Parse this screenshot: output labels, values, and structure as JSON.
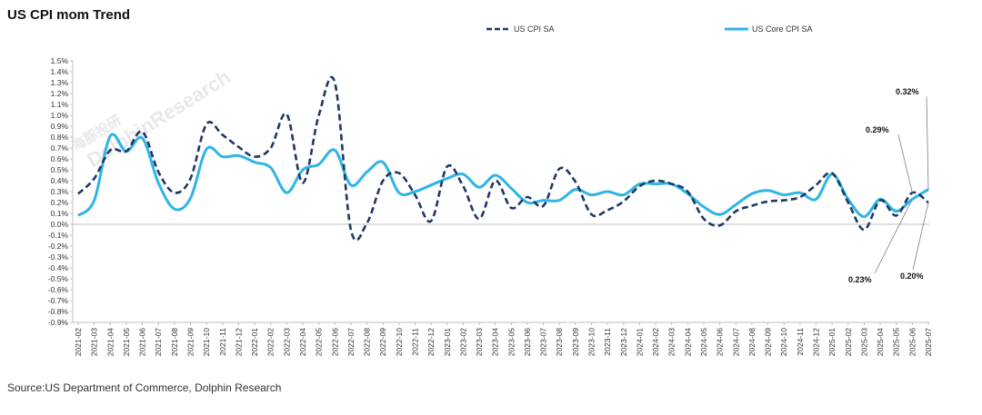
{
  "title": "US CPI mom Trend",
  "source": "Source:US Department of Commerce, Dolphin Research",
  "watermark": {
    "en": "DolphinResearch",
    "cn": "海豚投研"
  },
  "chart_data": {
    "type": "line",
    "title": "US CPI mom Trend",
    "xlabel": "",
    "ylabel": "",
    "ylim": [
      -0.009,
      0.015
    ],
    "yticks": [
      "-0.9%",
      "-0.8%",
      "-0.7%",
      "-0.6%",
      "-0.5%",
      "-0.4%",
      "-0.3%",
      "-0.2%",
      "-0.1%",
      "0.0%",
      "0.1%",
      "0.2%",
      "0.3%",
      "0.4%",
      "0.5%",
      "0.6%",
      "0.7%",
      "0.8%",
      "0.9%",
      "1.0%",
      "1.1%",
      "1.2%",
      "1.3%",
      "1.4%",
      "1.5%"
    ],
    "grid": false,
    "legend": "top",
    "categories": [
      "2021-02",
      "2021-03",
      "2021-04",
      "2021-05",
      "2021-06",
      "2021-07",
      "2021-08",
      "2021-09",
      "2021-10",
      "2021-11",
      "2021-12",
      "2022-01",
      "2022-02",
      "2022-03",
      "2022-04",
      "2022-05",
      "2022-06",
      "2022-07",
      "2022-08",
      "2022-09",
      "2022-10",
      "2022-11",
      "2022-12",
      "2023-01",
      "2023-02",
      "2023-03",
      "2023-04",
      "2023-05",
      "2023-06",
      "2023-07",
      "2023-08",
      "2023-09",
      "2023-10",
      "2023-11",
      "2023-12",
      "2024-01",
      "2024-02",
      "2024-03",
      "2024-04",
      "2024-05",
      "2024-06",
      "2024-07",
      "2024-08",
      "2024-09",
      "2024-10",
      "2024-11",
      "2024-12",
      "2025-01",
      "2025-02",
      "2025-03",
      "2025-04",
      "2025-05",
      "2025-06",
      "2025-07"
    ],
    "series": [
      {
        "name": "US CPI SA",
        "color": "#1f3864",
        "dash": true,
        "values": [
          0.0028,
          0.0042,
          0.0068,
          0.0067,
          0.0085,
          0.0048,
          0.0029,
          0.0042,
          0.0092,
          0.0082,
          0.0071,
          0.0062,
          0.007,
          0.0101,
          0.0038,
          0.01,
          0.013,
          -0.0005,
          0.0001,
          0.004,
          0.0047,
          0.0027,
          0.0003,
          0.0053,
          0.0035,
          0.0005,
          0.004,
          0.0015,
          0.0025,
          0.0017,
          0.0051,
          0.0039,
          0.0009,
          0.0013,
          0.0021,
          0.0035,
          0.004,
          0.0037,
          0.003,
          0.0005,
          -0.0001,
          0.0012,
          0.0017,
          0.0021,
          0.0022,
          0.0025,
          0.0036,
          0.0047,
          0.002,
          -0.0005,
          0.0022,
          0.0008,
          0.0029,
          0.002
        ]
      },
      {
        "name": "US Core CPI SA",
        "color": "#2eb5e6",
        "dash": false,
        "values": [
          0.0008,
          0.0022,
          0.0081,
          0.0067,
          0.0079,
          0.0038,
          0.0014,
          0.0024,
          0.0069,
          0.0062,
          0.0063,
          0.0057,
          0.0052,
          0.0029,
          0.005,
          0.0055,
          0.0068,
          0.0036,
          0.0048,
          0.0057,
          0.0029,
          0.003,
          0.0036,
          0.0042,
          0.0046,
          0.0034,
          0.0045,
          0.0033,
          0.002,
          0.0022,
          0.0022,
          0.0032,
          0.0027,
          0.003,
          0.0027,
          0.0037,
          0.0037,
          0.0037,
          0.0028,
          0.0016,
          0.0009,
          0.0018,
          0.0028,
          0.0031,
          0.0027,
          0.0029,
          0.0023,
          0.0046,
          0.0023,
          0.0007,
          0.0023,
          0.0012,
          0.0023,
          0.0032
        ]
      }
    ],
    "annotations": [
      {
        "label": "0.32%",
        "series": 1,
        "index": 53
      },
      {
        "label": "0.29%",
        "series": 0,
        "index": 52
      },
      {
        "label": "0.23%",
        "series": 1,
        "index": 52
      },
      {
        "label": "0.20%",
        "series": 0,
        "index": 53
      }
    ]
  }
}
